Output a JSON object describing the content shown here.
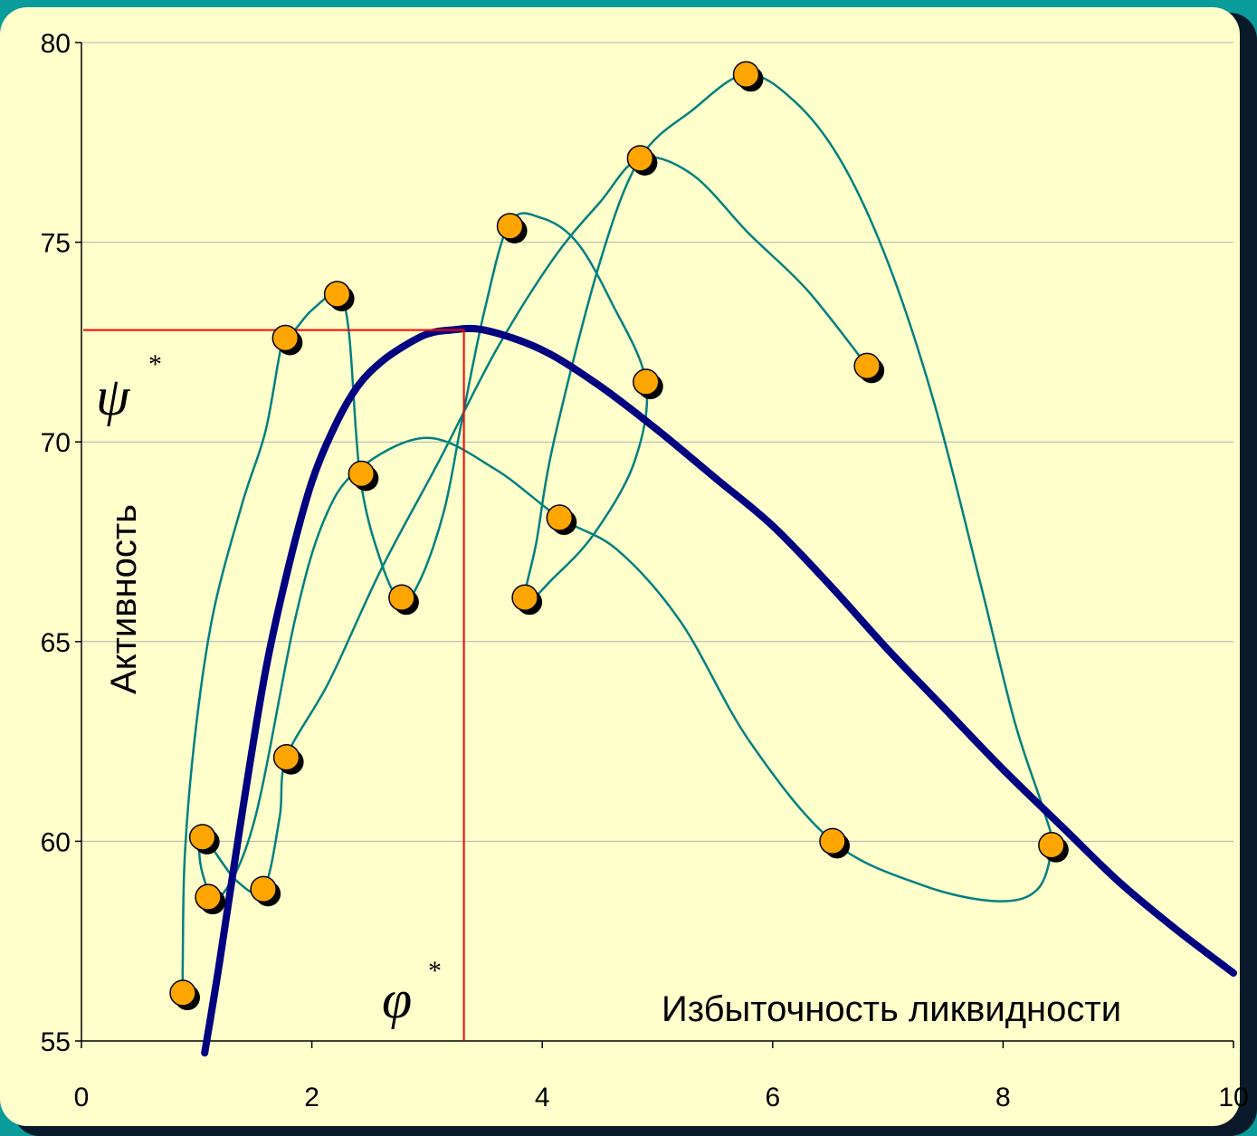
{
  "chart_data": {
    "type": "scatter",
    "xlim": [
      0,
      10
    ],
    "ylim": [
      55,
      80
    ],
    "x_ticks": [
      "0",
      "2",
      "4",
      "6",
      "8",
      "10"
    ],
    "y_ticks": [
      "55",
      "60",
      "65",
      "70",
      "75",
      "80"
    ],
    "xlabel": "Избыточность ликвидности",
    "ylabel": "Активность",
    "grid": "horizontal",
    "annotations": [
      {
        "symbol": "ψ",
        "superscript": "*",
        "value": 72.8
      },
      {
        "symbol": "φ",
        "superscript": "*",
        "value": 3.32
      }
    ],
    "trend_curve": {
      "color": "#000080",
      "points": [
        [
          1.07,
          54.7
        ],
        [
          1.2,
          57.0
        ],
        [
          1.4,
          60.8
        ],
        [
          1.6,
          64.3
        ],
        [
          1.8,
          66.9
        ],
        [
          2.0,
          69.0
        ],
        [
          2.2,
          70.4
        ],
        [
          2.4,
          71.4
        ],
        [
          2.6,
          72.0
        ],
        [
          2.8,
          72.4
        ],
        [
          3.0,
          72.7
        ],
        [
          3.2,
          72.8
        ],
        [
          3.5,
          72.8
        ],
        [
          4.0,
          72.3
        ],
        [
          4.5,
          71.4
        ],
        [
          5.0,
          70.3
        ],
        [
          5.5,
          69.1
        ],
        [
          6.0,
          67.9
        ],
        [
          6.5,
          66.4
        ],
        [
          7.0,
          64.8
        ],
        [
          7.5,
          63.3
        ],
        [
          8.0,
          61.8
        ],
        [
          8.5,
          60.4
        ],
        [
          9.0,
          59.0
        ],
        [
          9.5,
          57.8
        ],
        [
          10.0,
          56.7
        ]
      ]
    },
    "trajectory": {
      "color": "#008080",
      "points": [
        [
          0.88,
          56.2
        ],
        [
          0.88,
          57.1
        ],
        [
          0.9,
          59.8
        ],
        [
          1.0,
          63.0
        ],
        [
          1.15,
          65.8
        ],
        [
          1.4,
          68.5
        ],
        [
          1.6,
          70.3
        ],
        [
          1.75,
          72.6
        ],
        [
          1.85,
          72.8
        ],
        [
          2.0,
          73.3
        ],
        [
          2.22,
          73.7
        ],
        [
          2.32,
          72.8
        ],
        [
          2.42,
          69.1
        ],
        [
          2.6,
          67.0
        ],
        [
          2.78,
          66.0
        ],
        [
          2.95,
          66.6
        ],
        [
          3.15,
          68.3
        ],
        [
          3.3,
          70.5
        ],
        [
          3.5,
          73.3
        ],
        [
          3.72,
          75.5
        ],
        [
          4.0,
          75.6
        ],
        [
          4.3,
          75.0
        ],
        [
          4.6,
          73.5
        ],
        [
          4.9,
          71.5
        ],
        [
          4.8,
          69.5
        ],
        [
          4.45,
          67.7
        ],
        [
          4.1,
          66.6
        ],
        [
          3.85,
          66.0
        ],
        [
          3.95,
          67.5
        ],
        [
          4.1,
          70.0
        ],
        [
          4.5,
          74.5
        ],
        [
          4.85,
          77.1
        ],
        [
          5.3,
          78.3
        ],
        [
          5.77,
          79.2
        ],
        [
          6.2,
          78.5
        ],
        [
          6.6,
          77.0
        ],
        [
          7.0,
          74.5
        ],
        [
          7.4,
          71.0
        ],
        [
          7.8,
          66.5
        ],
        [
          8.1,
          63.0
        ],
        [
          8.35,
          60.8
        ],
        [
          8.42,
          59.9
        ],
        [
          8.3,
          58.8
        ],
        [
          7.95,
          58.5
        ],
        [
          7.3,
          58.9
        ],
        [
          6.52,
          60.0
        ],
        [
          5.8,
          62.5
        ],
        [
          5.2,
          65.5
        ],
        [
          4.65,
          67.3
        ],
        [
          4.15,
          68.1
        ],
        [
          3.6,
          69.3
        ],
        [
          3.0,
          70.1
        ],
        [
          2.4,
          69.3
        ],
        [
          2.1,
          68.0
        ],
        [
          1.85,
          65.5
        ],
        [
          1.5,
          60.5
        ],
        [
          1.2,
          58.6
        ],
        [
          1.05,
          59.2
        ],
        [
          1.05,
          60.1
        ],
        [
          1.35,
          59.0
        ],
        [
          1.58,
          58.8
        ],
        [
          1.72,
          60.6
        ],
        [
          1.78,
          62.1
        ],
        [
          2.15,
          64.0
        ],
        [
          2.6,
          66.8
        ],
        [
          3.1,
          69.5
        ],
        [
          3.6,
          72.3
        ],
        [
          4.1,
          74.6
        ],
        [
          4.5,
          76.0
        ],
        [
          4.85,
          77.1
        ],
        [
          5.3,
          76.7
        ],
        [
          5.8,
          75.2
        ],
        [
          6.3,
          73.8
        ],
        [
          6.82,
          71.9
        ]
      ]
    },
    "points": [
      [
        0.88,
        56.2
      ],
      [
        1.1,
        58.6
      ],
      [
        1.05,
        60.1
      ],
      [
        1.58,
        58.8
      ],
      [
        1.78,
        62.1
      ],
      [
        1.77,
        72.6
      ],
      [
        2.22,
        73.7
      ],
      [
        2.43,
        69.2
      ],
      [
        2.78,
        66.1
      ],
      [
        3.72,
        75.4
      ],
      [
        3.85,
        66.1
      ],
      [
        4.15,
        68.1
      ],
      [
        4.9,
        71.5
      ],
      [
        4.85,
        77.1
      ],
      [
        5.77,
        79.2
      ],
      [
        6.82,
        71.9
      ],
      [
        6.52,
        60.0
      ],
      [
        8.42,
        59.9
      ]
    ],
    "marker_color": "#ffa500"
  }
}
